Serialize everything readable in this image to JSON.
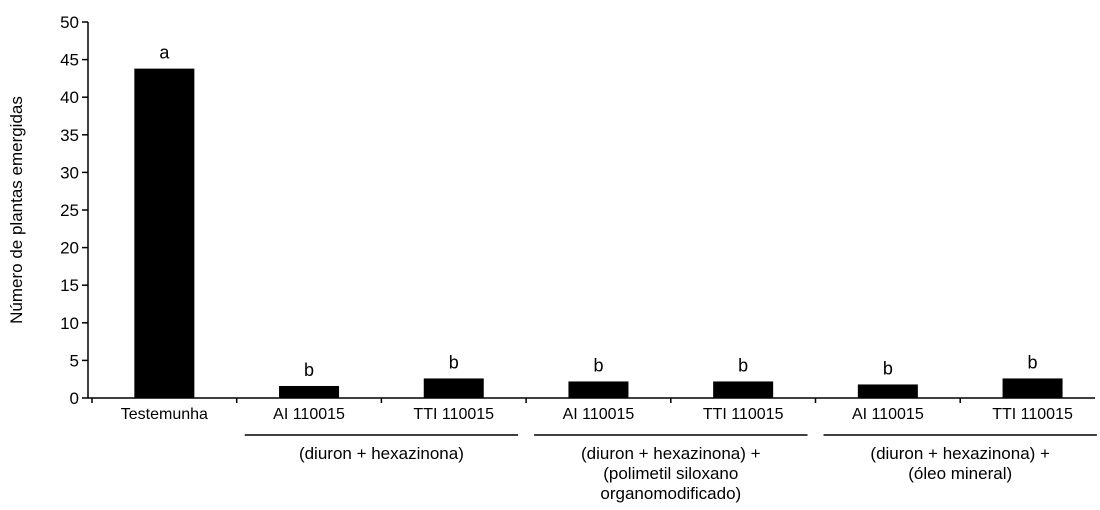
{
  "chart_data": {
    "type": "bar",
    "ylabel": "Número de plantas emergidas",
    "ylim": [
      0,
      50
    ],
    "yticks": [
      0,
      5,
      10,
      15,
      20,
      25,
      30,
      35,
      40,
      45,
      50
    ],
    "categories": [
      "Testemunha",
      "AI 110015",
      "TTI 110015",
      "AI 110015",
      "TTI 110015",
      "AI 110015",
      "TTI 110015"
    ],
    "values": [
      43.8,
      1.6,
      2.6,
      2.2,
      2.2,
      1.8,
      2.6
    ],
    "bar_labels": [
      "a",
      "b",
      "b",
      "b",
      "b",
      "b",
      "b"
    ],
    "groups": [
      {
        "lines": [
          "(diuron + hexazinona)"
        ],
        "categories": [
          1,
          2
        ]
      },
      {
        "lines": [
          "(diuron + hexazinona) +",
          "(polimetil siloxano",
          "organomodificado)"
        ],
        "categories": [
          3,
          4
        ]
      },
      {
        "lines": [
          "(diuron + hexazinona) +",
          "(óleo mineral)"
        ],
        "categories": [
          5,
          6
        ]
      }
    ],
    "bar_color": "#000000",
    "grid": false,
    "legend": "none"
  }
}
